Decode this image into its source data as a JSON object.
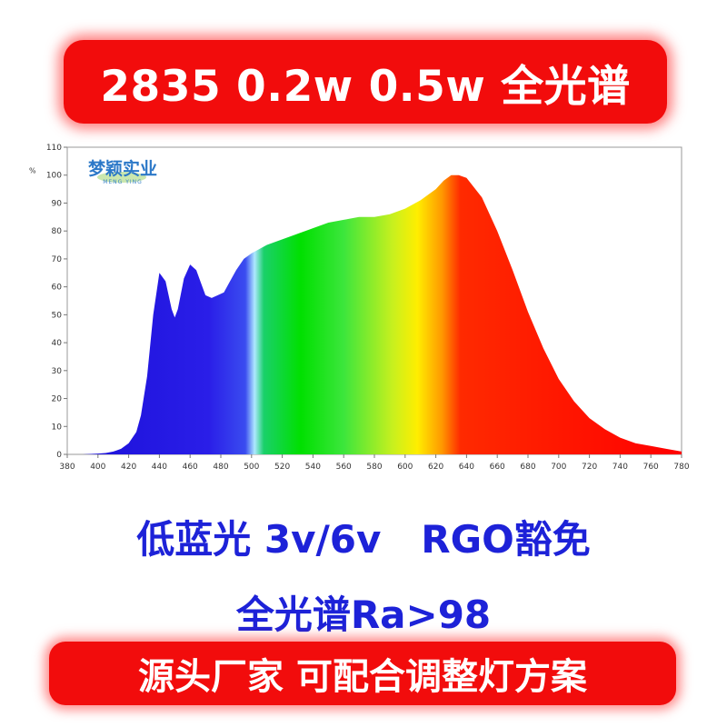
{
  "header": {
    "title": "2835 0.2w 0.5w 全光谱"
  },
  "logo": {
    "brand": "梦颖实业",
    "subtitle": "MENG YING"
  },
  "features": {
    "line1": "低蓝光 3v/6v   RGO豁免",
    "line2": "全光谱Ra>98"
  },
  "footer": {
    "text": "源头厂家 可配合调整灯方案"
  },
  "colors": {
    "banner": "#f20c0c",
    "blue_text": "#1d22d8",
    "banner_text": "#ffffff"
  },
  "chart_data": {
    "type": "area",
    "title": "",
    "xlabel": "",
    "ylabel": "%",
    "xlim": [
      380,
      780
    ],
    "ylim": [
      0,
      110
    ],
    "x_ticks": [
      380,
      400,
      420,
      440,
      460,
      480,
      500,
      520,
      540,
      560,
      580,
      600,
      620,
      640,
      660,
      680,
      700,
      720,
      740,
      760,
      780
    ],
    "y_ticks": [
      0,
      10,
      20,
      30,
      40,
      50,
      60,
      70,
      80,
      90,
      100,
      110
    ],
    "fill": "visible-spectrum gradient",
    "series": [
      {
        "x": [
          380,
          390,
          400,
          405,
          410,
          415,
          420,
          425,
          428,
          432,
          436,
          440,
          444,
          448,
          450,
          452,
          456,
          460,
          464,
          468,
          470,
          474,
          478,
          482,
          486,
          490,
          495,
          500,
          510,
          520,
          530,
          540,
          550,
          560,
          570,
          580,
          590,
          600,
          610,
          620,
          625,
          630,
          635,
          640,
          650,
          660,
          670,
          680,
          690,
          700,
          710,
          720,
          730,
          740,
          750,
          760,
          770,
          780
        ],
        "y": [
          0,
          0,
          0.3,
          0.5,
          1,
          2,
          4,
          8,
          14,
          28,
          50,
          65,
          62,
          52,
          49,
          52,
          63,
          68,
          66,
          60,
          57,
          56,
          57,
          58,
          62,
          66,
          70,
          72,
          75,
          77,
          79,
          81,
          83,
          84,
          85,
          85,
          86,
          88,
          91,
          95,
          98,
          100,
          100,
          99,
          92,
          80,
          66,
          51,
          38,
          27,
          19,
          13,
          9,
          6,
          4,
          3,
          2,
          1
        ]
      }
    ]
  }
}
